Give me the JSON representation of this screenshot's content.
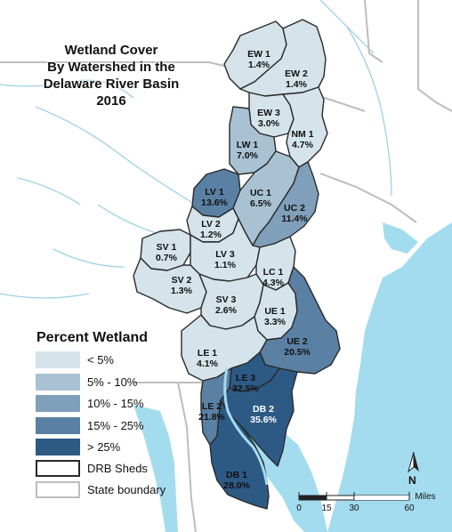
{
  "title": {
    "line1": "Wetland Cover",
    "line2": "By Watershed in the",
    "line3": "Delaware River Basin",
    "line4": "2016"
  },
  "legend": {
    "heading": "Percent Wetland",
    "classes": [
      {
        "label": "< 5%",
        "color": "#d5e3ea"
      },
      {
        "label": "5% - 10%",
        "color": "#a9c2d3"
      },
      {
        "label": "10% - 15%",
        "color": "#7f9fbb"
      },
      {
        "label": "15% - 25%",
        "color": "#5a80a4"
      },
      {
        "label": "> 25%",
        "color": "#2d5a85"
      }
    ],
    "sheds_label": "DRB Sheds",
    "state_label": "State boundary"
  },
  "watersheds": [
    {
      "code": "EW 1",
      "value": "1.4%"
    },
    {
      "code": "EW 2",
      "value": "1.4%"
    },
    {
      "code": "EW 3",
      "value": "3.0%"
    },
    {
      "code": "NM 1",
      "value": "4.7%"
    },
    {
      "code": "LW 1",
      "value": "7.0%"
    },
    {
      "code": "LV 1",
      "value": "13.6%"
    },
    {
      "code": "UC 1",
      "value": "6.5%"
    },
    {
      "code": "UC 2",
      "value": "11.4%"
    },
    {
      "code": "LV 2",
      "value": "1.2%"
    },
    {
      "code": "SV 1",
      "value": "0.7%"
    },
    {
      "code": "LV 3",
      "value": "1.1%"
    },
    {
      "code": "SV 2",
      "value": "1.3%"
    },
    {
      "code": "LC 1",
      "value": "4.3%"
    },
    {
      "code": "SV 3",
      "value": "2.6%"
    },
    {
      "code": "UE 1",
      "value": "3.3%"
    },
    {
      "code": "UE 2",
      "value": "20.5%"
    },
    {
      "code": "LE 1",
      "value": "4.1%"
    },
    {
      "code": "LE 3",
      "value": "32.5%"
    },
    {
      "code": "LE 2",
      "value": "21.8%"
    },
    {
      "code": "DB 2",
      "value": "35.6%"
    },
    {
      "code": "DB 1",
      "value": "28.0%"
    }
  ],
  "scale": {
    "ticks": [
      "0",
      "15",
      "30",
      "60"
    ],
    "unit": "Miles"
  },
  "north_label": "N",
  "colors": {
    "water": "#a3dcee",
    "land": "#ffffff",
    "river": "#9fd1e6",
    "outline": "#2a2a2a",
    "state_boundary": "#bdbdbd"
  }
}
